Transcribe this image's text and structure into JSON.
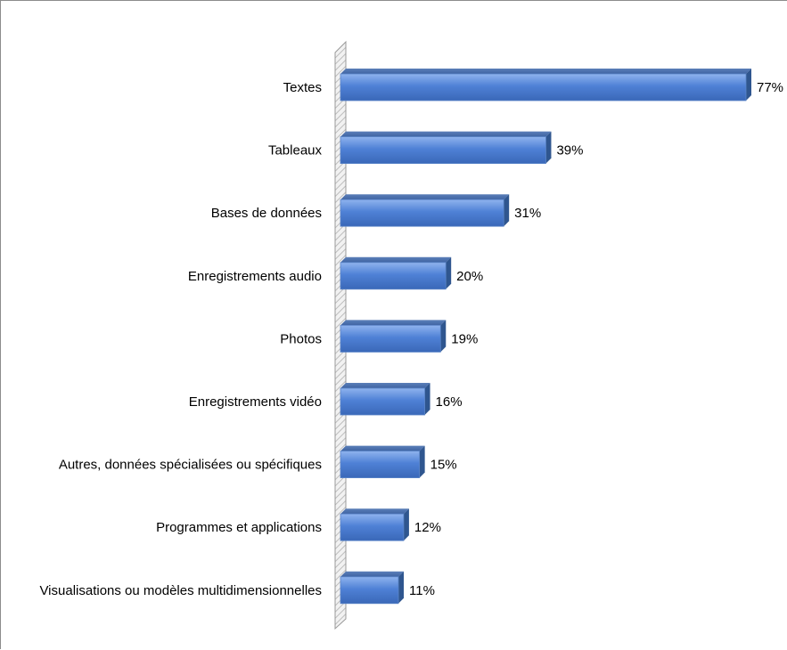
{
  "chart_data": {
    "type": "bar",
    "orientation": "horizontal",
    "title": "",
    "xlabel": "",
    "ylabel": "",
    "xlim": [
      0,
      77
    ],
    "grid": false,
    "legend": "none",
    "bar_color": "#4f81d6",
    "categories": [
      "Textes",
      "Tableaux",
      "Bases de données",
      "Enregistrements audio",
      "Photos",
      "Enregistrements vidéo",
      "Autres, données spécialisées ou spécifiques",
      "Programmes et applications",
      "Visualisations ou modèles multidimensionnelles"
    ],
    "values": [
      77,
      39,
      31,
      20,
      19,
      16,
      15,
      12,
      11
    ],
    "value_labels": [
      "77%",
      "39%",
      "31%",
      "20%",
      "19%",
      "16%",
      "15%",
      "12%",
      "11%"
    ]
  }
}
